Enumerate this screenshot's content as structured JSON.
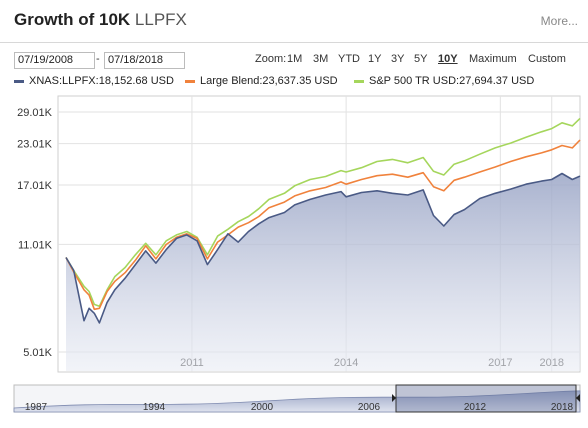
{
  "header": {
    "title": "Growth of 10K",
    "symbol": "LLPFX",
    "more": "More..."
  },
  "dates": {
    "start": "07/19/2008",
    "end": "07/18/2018",
    "separator": "-"
  },
  "zoom": {
    "label": "Zoom:",
    "options": [
      "1M",
      "3M",
      "YTD",
      "1Y",
      "3Y",
      "5Y",
      "10Y",
      "Maximum",
      "Custom"
    ],
    "active": "10Y"
  },
  "legend": [
    {
      "text": "XNAS:LLPFX:18,152.68 USD",
      "color": "#4a5a85"
    },
    {
      "text": "Large Blend:23,637.35 USD",
      "color": "#f0823c"
    },
    {
      "text": "S&P 500 TR USD:27,694.37 USD",
      "color": "#a5d65c"
    }
  ],
  "navigator": {
    "ticks": [
      "1987",
      "1994",
      "2000",
      "2006",
      "2012",
      "2018"
    ]
  },
  "chart_data": {
    "type": "area",
    "scale": "log",
    "ylim": [
      5010,
      29010
    ],
    "y_ticks": [
      {
        "label": "29.01K",
        "value": 29010
      },
      {
        "label": "23.01K",
        "value": 23010
      },
      {
        "label": "17.01K",
        "value": 17010
      },
      {
        "label": "11.01K",
        "value": 11010
      },
      {
        "label": "5.01K",
        "value": 5010
      }
    ],
    "xlim": [
      2008.55,
      2018.55
    ],
    "x_ticks": [
      {
        "label": "2011",
        "value": 2011
      },
      {
        "label": "2014",
        "value": 2014
      },
      {
        "label": "2017",
        "value": 2017
      },
      {
        "label": "2018",
        "value": 2018
      }
    ],
    "grid": true,
    "x": [
      2008.55,
      2008.7,
      2008.9,
      2009.0,
      2009.1,
      2009.2,
      2009.35,
      2009.5,
      2009.7,
      2009.9,
      2010.1,
      2010.3,
      2010.5,
      2010.7,
      2010.9,
      2011.1,
      2011.3,
      2011.5,
      2011.7,
      2011.9,
      2012.1,
      2012.3,
      2012.5,
      2012.8,
      2013.0,
      2013.3,
      2013.6,
      2013.9,
      2014.0,
      2014.3,
      2014.6,
      2014.9,
      2015.2,
      2015.5,
      2015.7,
      2015.9,
      2016.1,
      2016.3,
      2016.6,
      2016.9,
      2017.2,
      2017.5,
      2017.8,
      2018.0,
      2018.2,
      2018.4,
      2018.55
    ],
    "series": [
      {
        "name": "XNAS:LLPFX",
        "color": "#4a5a85",
        "fill": true,
        "values": [
          10000,
          9100,
          6300,
          6900,
          6650,
          6200,
          7200,
          7900,
          8600,
          9500,
          10500,
          9600,
          10600,
          11500,
          11800,
          11300,
          9500,
          10600,
          11900,
          11200,
          12100,
          12800,
          13400,
          13900,
          14700,
          15300,
          15800,
          16200,
          15600,
          16100,
          16300,
          16000,
          15800,
          16400,
          13600,
          12600,
          13700,
          14200,
          15400,
          16000,
          16500,
          17100,
          17500,
          17700,
          18500,
          17700,
          18150
        ]
      },
      {
        "name": "Large Blend",
        "color": "#f0823c",
        "fill": false,
        "values": [
          10000,
          9000,
          7900,
          7600,
          6850,
          6900,
          7800,
          8400,
          8950,
          9800,
          10900,
          9900,
          11000,
          11600,
          11900,
          11500,
          9900,
          11200,
          11800,
          12500,
          12900,
          13500,
          14400,
          15000,
          15700,
          16300,
          16700,
          17400,
          17100,
          17700,
          18200,
          18400,
          18000,
          18600,
          16800,
          16300,
          17600,
          18000,
          18700,
          19400,
          20200,
          20900,
          21500,
          22000,
          22700,
          22300,
          23640
        ]
      },
      {
        "name": "S&P 500 TR USD",
        "color": "#a5d65c",
        "fill": false,
        "values": [
          10000,
          9100,
          8100,
          7800,
          7100,
          7000,
          7900,
          8700,
          9300,
          10200,
          11100,
          10200,
          11300,
          11800,
          12100,
          11600,
          10200,
          11700,
          12300,
          13000,
          13500,
          14300,
          15300,
          16000,
          16900,
          17700,
          18100,
          18900,
          18700,
          19300,
          20200,
          20500,
          20000,
          20800,
          18800,
          18300,
          19800,
          20300,
          21300,
          22300,
          23100,
          24100,
          25100,
          25700,
          26800,
          26200,
          27690
        ]
      }
    ]
  }
}
